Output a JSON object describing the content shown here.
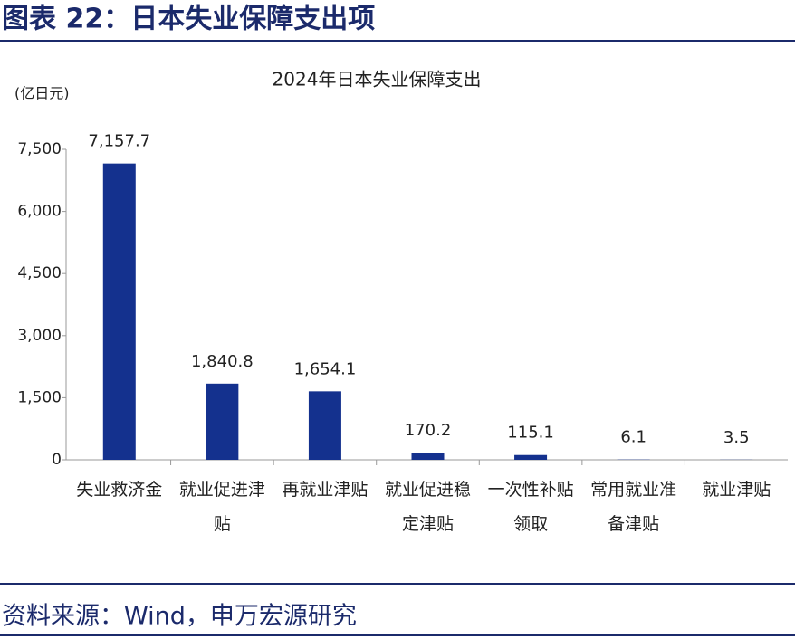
{
  "header": {
    "title": "图表 22：日本失业保障支出项"
  },
  "chart_data": {
    "type": "bar",
    "title": "2024年日本失业保障支出",
    "y_label": "(亿日元)",
    "categories": [
      "失业救济金",
      "就业促进津贴",
      "再就业津贴",
      "就业促进稳定津贴",
      "一次性补贴领取",
      "常用就业准备津贴",
      "就业津贴"
    ],
    "values": [
      7157.7,
      1840.8,
      1654.1,
      170.2,
      115.1,
      6.1,
      3.5
    ],
    "value_labels": [
      "7,157.7",
      "1,840.8",
      "1,654.1",
      "170.2",
      "115.1",
      "6.1",
      "3.5"
    ],
    "color": "#14318e",
    "ylim": [
      0,
      7500
    ],
    "yticks": [
      0,
      {
        "value": 1500,
        "label": "1,500"
      },
      {
        "value": 3000,
        "label": "3,000"
      },
      {
        "value": 4500,
        "label": "4,500"
      },
      {
        "value": 6000,
        "label": "6,000"
      },
      {
        "value": 7500,
        "label": "7,500"
      }
    ],
    "grid": false
  },
  "footer": {
    "source": "资料来源：Wind，申万宏源研究"
  }
}
